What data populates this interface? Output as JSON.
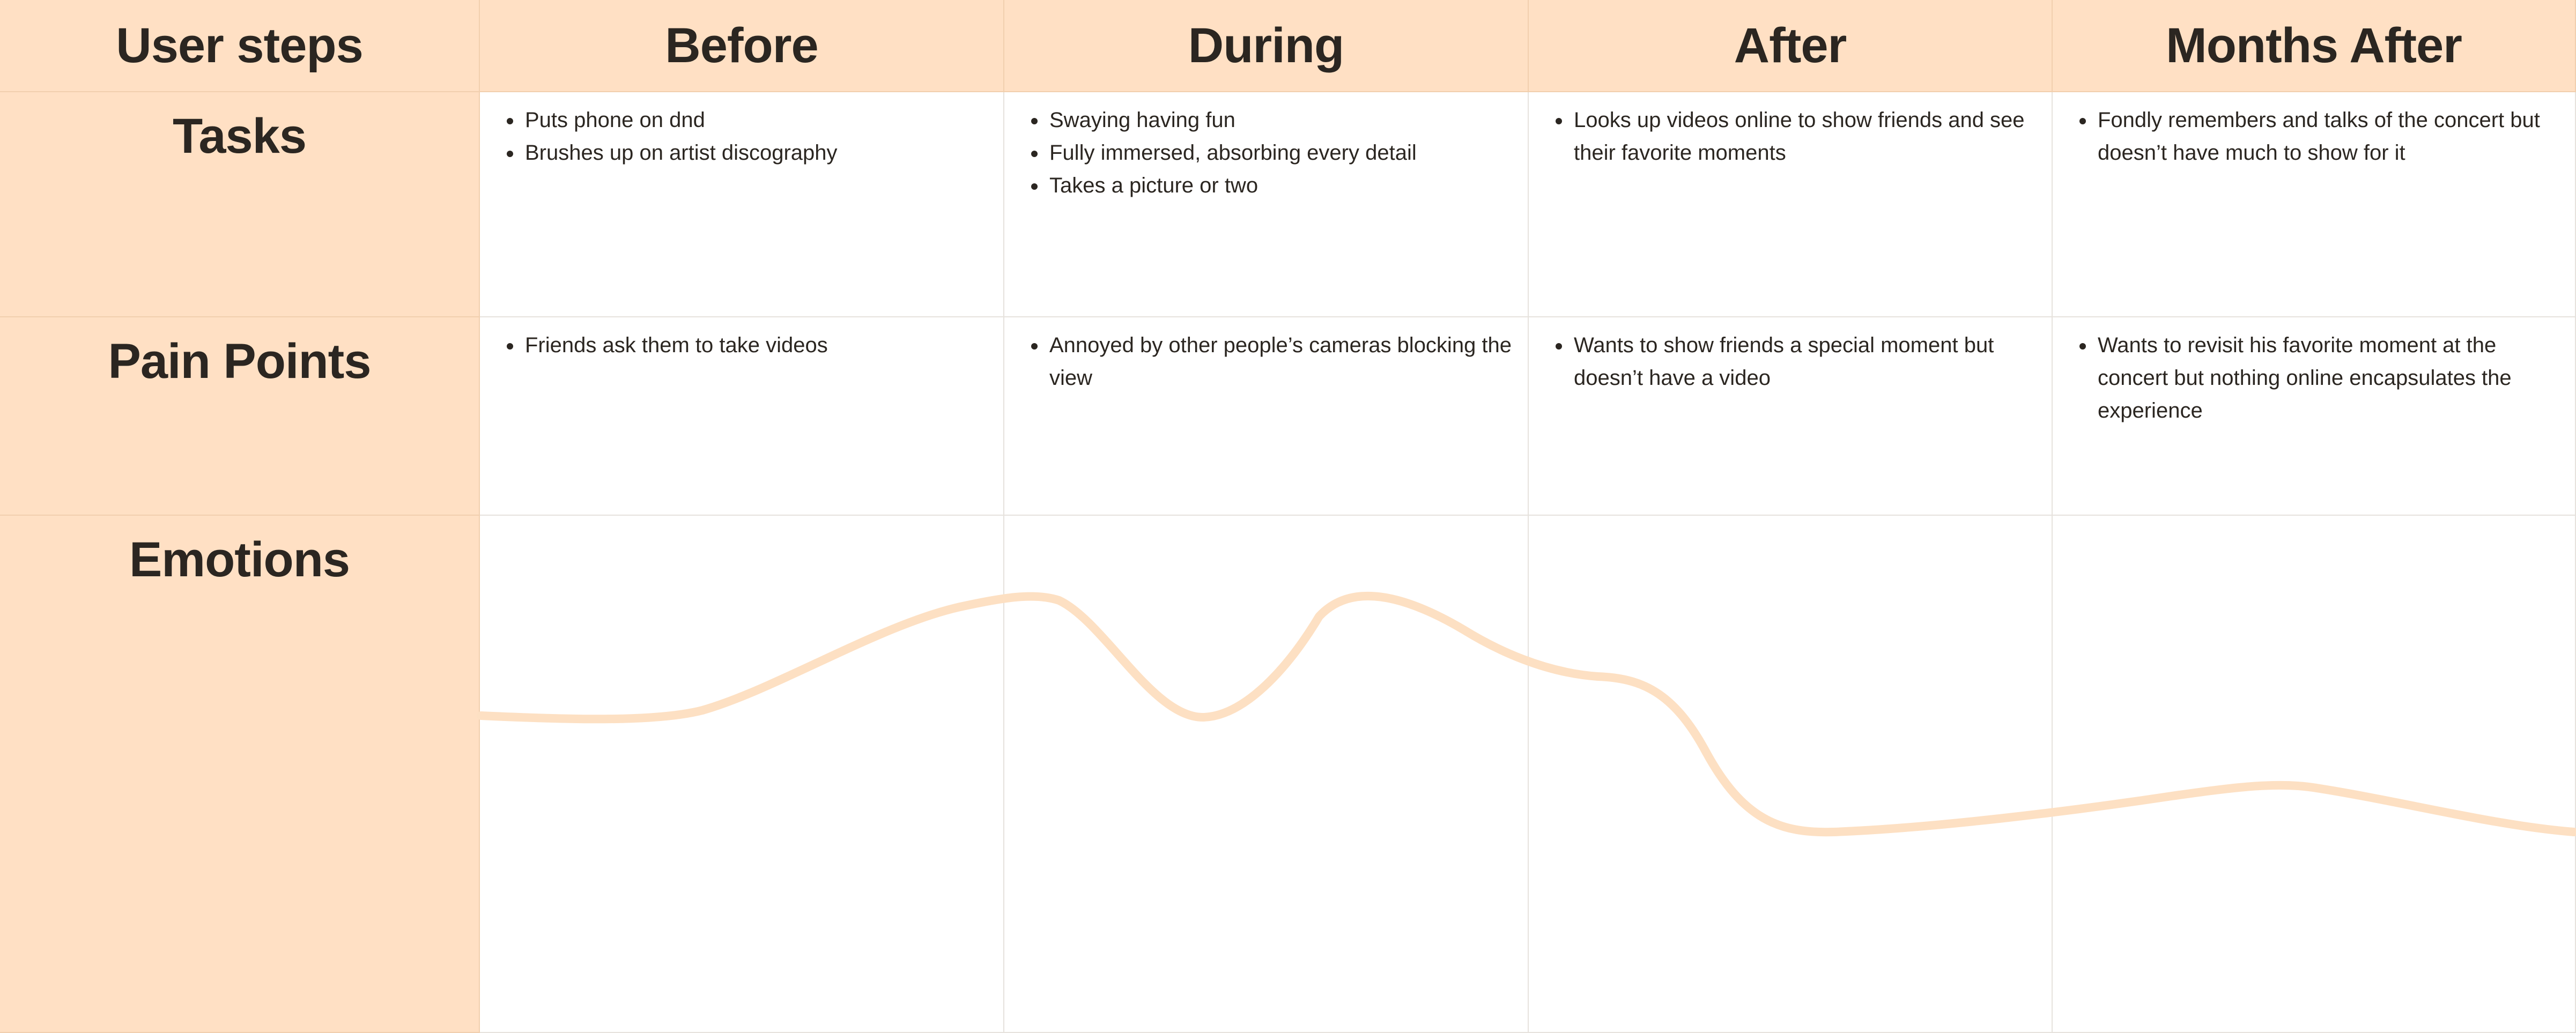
{
  "header": {
    "corner": "User steps",
    "stages": [
      "Before",
      "During",
      "After",
      "Months After"
    ]
  },
  "rows": {
    "tasks": {
      "label": "Tasks",
      "cells": [
        [
          "Puts phone on dnd",
          "Brushes up on artist discography"
        ],
        [
          "Swaying having fun",
          "Fully immersed, absorbing every detail",
          "Takes a picture or two"
        ],
        [
          "Looks up videos online to show friends and see their favorite moments"
        ],
        [
          "Fondly remembers and talks of the concert but doesn’t have much to show for it"
        ]
      ]
    },
    "pain_points": {
      "label": "Pain Points",
      "cells": [
        [
          "Friends ask them to take videos"
        ],
        [
          "Annoyed by other people’s cameras blocking the view"
        ],
        [
          "Wants to show friends a special moment but doesn’t have a video"
        ],
        [
          "Wants to revisit his favorite moment at the concert but nothing online encapsulates the experience"
        ]
      ]
    },
    "emotions": {
      "label": "Emotions"
    }
  },
  "colors": {
    "header_bg": "#ffe0c4",
    "curve": "#fde0c3",
    "text": "#2b2621",
    "grid": "#e6e2dd"
  }
}
